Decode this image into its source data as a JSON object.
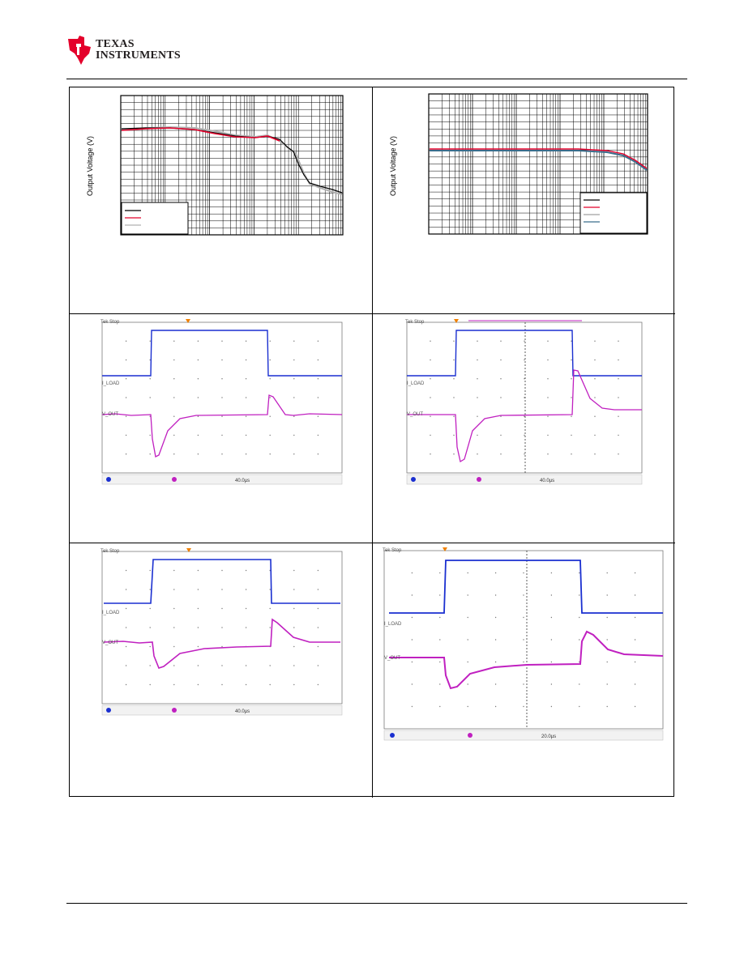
{
  "header": {
    "company_line1": "Texas",
    "company_line2": "Instruments",
    "brand_color": "#e4002b"
  },
  "figures": {
    "plot_left": {
      "ylabel": "Output Voltage (V)",
      "legend_colors": [
        "#000000",
        "#e4002b",
        "#b0b0b0"
      ]
    },
    "plot_right": {
      "ylabel": "Output Voltage (V)",
      "legend_colors": [
        "#000000",
        "#e4002b",
        "#a0a0a0",
        "#3a6d8c"
      ]
    }
  },
  "scope": {
    "ch1_color": "#1a2fd0",
    "ch2_color": "#c020c0",
    "trigger_color": "#f08000",
    "labels_1": {
      "top_left": "Tek Stop",
      "ch1_tag": "I_LOAD",
      "ch2_tag": "V_OUT",
      "timebase": "40.0µs"
    },
    "labels_2": {
      "top_left": "Tek Stop",
      "ch1_tag": "I_LOAD",
      "ch2_tag": "V_OUT",
      "timebase": "40.0µs"
    },
    "labels_3": {
      "top_left": "Tek Stop",
      "ch1_tag": "I_LOAD",
      "ch2_tag": "V_OUT",
      "timebase": "40.0µs"
    },
    "labels_4": {
      "top_left": "Tek Stop",
      "ch1_tag": "I_LOAD",
      "ch2_tag": "V_OUT",
      "timebase": "20.0µs"
    }
  }
}
